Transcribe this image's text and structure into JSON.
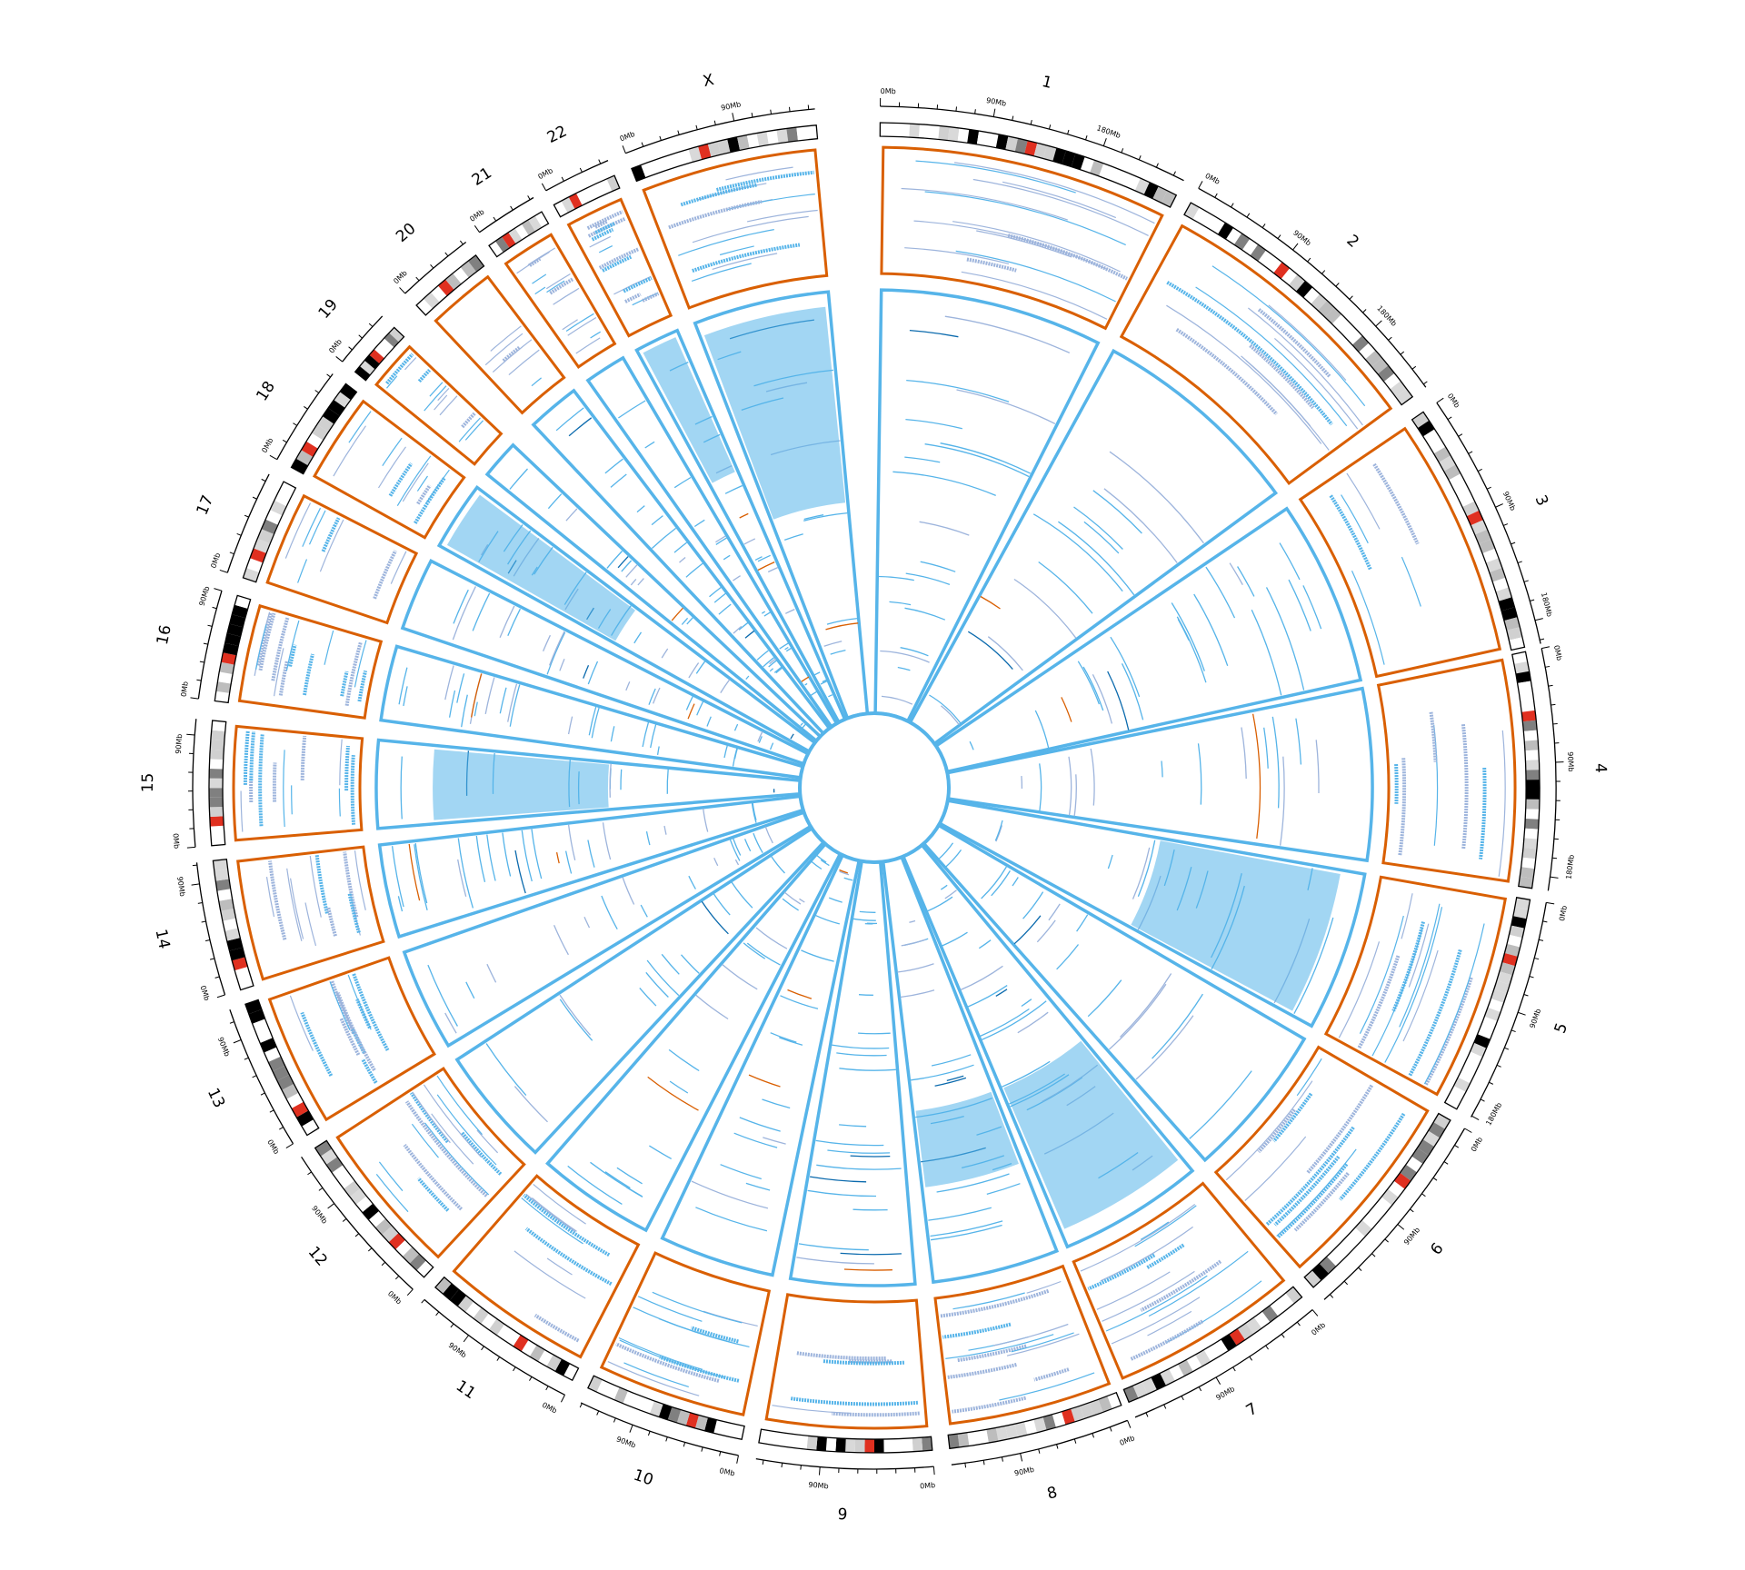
{
  "chart_data": {
    "type": "circos",
    "title": "",
    "units": "Mb",
    "chromosomes": [
      {
        "name": "1",
        "length_mb": 249,
        "centromere_mb": 125,
        "ticks": [
          "0Mb",
          "90Mb",
          "180Mb"
        ]
      },
      {
        "name": "2",
        "length_mb": 243,
        "centromere_mb": 93,
        "ticks": [
          "0Mb",
          "90Mb",
          "180Mb"
        ]
      },
      {
        "name": "3",
        "length_mb": 198,
        "centromere_mb": 91,
        "ticks": [
          "0Mb",
          "90Mb",
          "180Mb"
        ]
      },
      {
        "name": "4",
        "length_mb": 191,
        "centromere_mb": 50,
        "ticks": [
          "0Mb",
          "90Mb",
          "180Mb"
        ]
      },
      {
        "name": "5",
        "length_mb": 181,
        "centromere_mb": 48,
        "ticks": [
          "0Mb",
          "90Mb",
          "180Mb"
        ]
      },
      {
        "name": "6",
        "length_mb": 171,
        "centromere_mb": 60,
        "ticks": [
          "0Mb",
          "90Mb"
        ]
      },
      {
        "name": "7",
        "length_mb": 159,
        "centromere_mb": 60,
        "ticks": [
          "0Mb",
          "90Mb"
        ]
      },
      {
        "name": "8",
        "length_mb": 146,
        "centromere_mb": 45,
        "ticks": [
          "0Mb",
          "90Mb"
        ]
      },
      {
        "name": "9",
        "length_mb": 141,
        "centromere_mb": 49,
        "ticks": [
          "0Mb",
          "90Mb"
        ]
      },
      {
        "name": "10",
        "length_mb": 136,
        "centromere_mb": 40,
        "ticks": [
          "0Mb",
          "90Mb"
        ]
      },
      {
        "name": "11",
        "length_mb": 135,
        "centromere_mb": 53,
        "ticks": [
          "0Mb",
          "90Mb"
        ]
      },
      {
        "name": "12",
        "length_mb": 134,
        "centromere_mb": 35,
        "ticks": [
          "0Mb",
          "90Mb"
        ]
      },
      {
        "name": "13",
        "length_mb": 115,
        "centromere_mb": 17,
        "ticks": [
          "0Mb",
          "90Mb"
        ]
      },
      {
        "name": "14",
        "length_mb": 107,
        "centromere_mb": 17,
        "ticks": [
          "0Mb",
          "90Mb"
        ]
      },
      {
        "name": "15",
        "length_mb": 103,
        "centromere_mb": 19,
        "ticks": [
          "0Mb",
          "90Mb"
        ]
      },
      {
        "name": "16",
        "length_mb": 90,
        "centromere_mb": 36,
        "ticks": [
          "0Mb",
          "90Mb"
        ]
      },
      {
        "name": "17",
        "length_mb": 81,
        "centromere_mb": 24,
        "ticks": [
          "0Mb"
        ]
      },
      {
        "name": "18",
        "length_mb": 78,
        "centromere_mb": 17,
        "ticks": [
          "0Mb"
        ]
      },
      {
        "name": "19",
        "length_mb": 59,
        "centromere_mb": 26,
        "ticks": [
          "0Mb"
        ]
      },
      {
        "name": "20",
        "length_mb": 63,
        "centromere_mb": 28,
        "ticks": [
          "0Mb"
        ]
      },
      {
        "name": "21",
        "length_mb": 48,
        "centromere_mb": 13,
        "ticks": [
          "0Mb"
        ]
      },
      {
        "name": "22",
        "length_mb": 51,
        "centromere_mb": 14,
        "ticks": [
          "0Mb"
        ]
      },
      {
        "name": "X",
        "length_mb": 155,
        "centromere_mb": 60,
        "ticks": [
          "0Mb",
          "90Mb"
        ]
      }
    ],
    "tick_interval_mb": 15,
    "tracks": [
      {
        "name": "outer track",
        "frame_color": "#d95f02"
      },
      {
        "name": "inner track",
        "frame_color": "#56b4e9"
      }
    ],
    "colors": {
      "light_blue": "#56b4e9",
      "lavender": "#9db4dc",
      "dark_blue": "#0b6aad",
      "orange": "#d95f02",
      "centromere": "#e03020"
    }
  }
}
